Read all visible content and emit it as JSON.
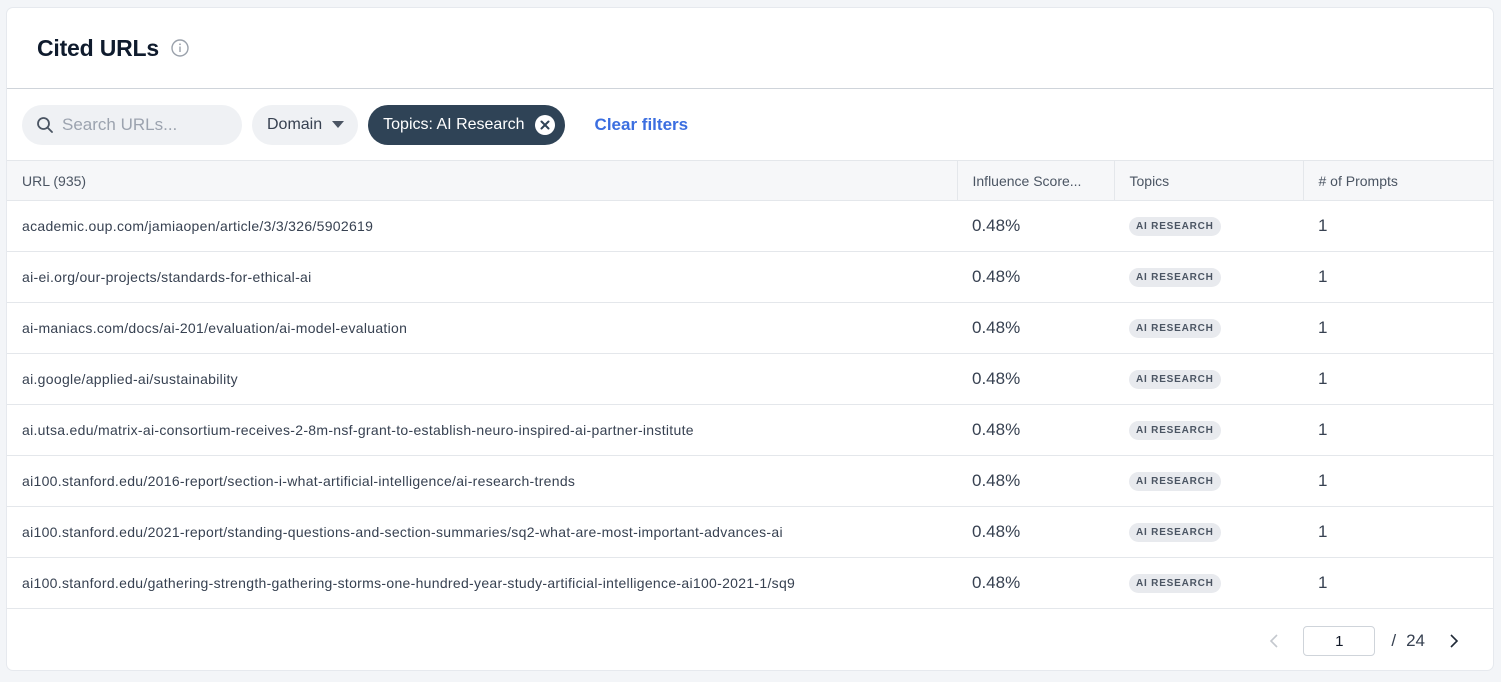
{
  "header": {
    "title": "Cited URLs"
  },
  "toolbar": {
    "search_placeholder": "Search URLs...",
    "domain_label": "Domain",
    "topic_chip_label": "Topics: AI Research",
    "clear_label": "Clear filters"
  },
  "table": {
    "columns": [
      "URL (935)",
      "Influence Score...",
      "Topics",
      "# of Prompts"
    ],
    "rows": [
      {
        "url": "academic.oup.com/jamiaopen/article/3/3/326/5902619",
        "score": "0.48%",
        "topic": "AI RESEARCH",
        "prompts": "1"
      },
      {
        "url": "ai-ei.org/our-projects/standards-for-ethical-ai",
        "score": "0.48%",
        "topic": "AI RESEARCH",
        "prompts": "1"
      },
      {
        "url": "ai-maniacs.com/docs/ai-201/evaluation/ai-model-evaluation",
        "score": "0.48%",
        "topic": "AI RESEARCH",
        "prompts": "1"
      },
      {
        "url": "ai.google/applied-ai/sustainability",
        "score": "0.48%",
        "topic": "AI RESEARCH",
        "prompts": "1"
      },
      {
        "url": "ai.utsa.edu/matrix-ai-consortium-receives-2-8m-nsf-grant-to-establish-neuro-inspired-ai-partner-institute",
        "score": "0.48%",
        "topic": "AI RESEARCH",
        "prompts": "1"
      },
      {
        "url": "ai100.stanford.edu/2016-report/section-i-what-artificial-intelligence/ai-research-trends",
        "score": "0.48%",
        "topic": "AI RESEARCH",
        "prompts": "1"
      },
      {
        "url": "ai100.stanford.edu/2021-report/standing-questions-and-section-summaries/sq2-what-are-most-important-advances-ai",
        "score": "0.48%",
        "topic": "AI RESEARCH",
        "prompts": "1"
      },
      {
        "url": "ai100.stanford.edu/gathering-strength-gathering-storms-one-hundred-year-study-artificial-intelligence-ai100-2021-1/sq9",
        "score": "0.48%",
        "topic": "AI RESEARCH",
        "prompts": "1"
      }
    ]
  },
  "pagination": {
    "current": "1",
    "separator": "/",
    "total": "24"
  },
  "icons": {
    "info": "info-icon",
    "search": "search-icon",
    "dropdown": "caret-down-icon",
    "chip_close": "close-circle-icon",
    "prev": "chevron-left-icon",
    "next": "chevron-right-icon"
  },
  "colors": {
    "chip_bg": "#2f4356",
    "link": "#3b6ee0",
    "badge_bg": "#e8eaee"
  }
}
